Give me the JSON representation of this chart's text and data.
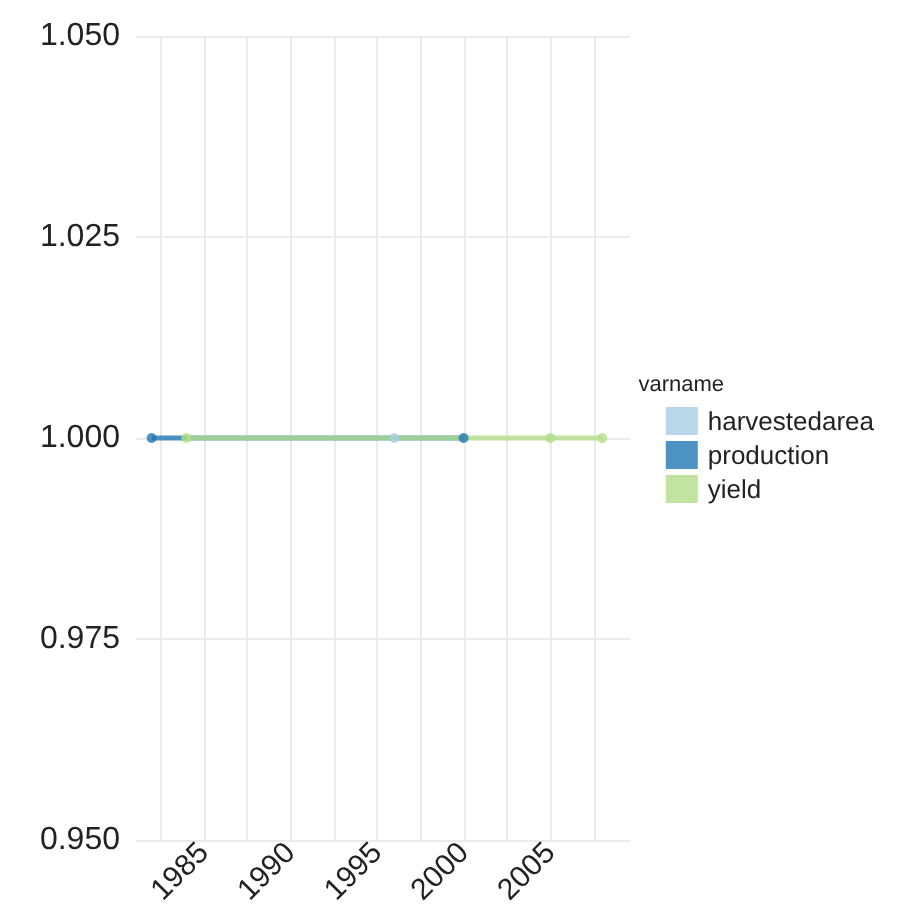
{
  "chart_data": {
    "type": "line",
    "series": [
      {
        "name": "harvestedarea",
        "color": "#a6cee3",
        "x": [
          1996
        ],
        "values": [
          1
        ]
      },
      {
        "name": "production",
        "color": "#1f78b4",
        "x": [
          1982,
          2000
        ],
        "values": [
          1,
          1
        ]
      },
      {
        "name": "yield",
        "color": "#b2df8a",
        "x": [
          1984,
          2005,
          2008
        ],
        "values": [
          1,
          1,
          1
        ]
      }
    ],
    "xlim": [
      1981.1,
      2009.6
    ],
    "xticks": [
      1985,
      1990,
      1995,
      2000,
      2005
    ],
    "ylim": [
      0.95,
      1.05
    ],
    "yticks": [
      {
        "value": 0.95,
        "label": "0.950"
      },
      0.975,
      {
        "value": 1,
        "label": "1.000"
      },
      1.025,
      {
        "value": 1.05,
        "label": "1.050"
      }
    ],
    "legend_title": "varname",
    "legend": "right",
    "grid": true,
    "marker": "circle",
    "line_style": "solid"
  }
}
